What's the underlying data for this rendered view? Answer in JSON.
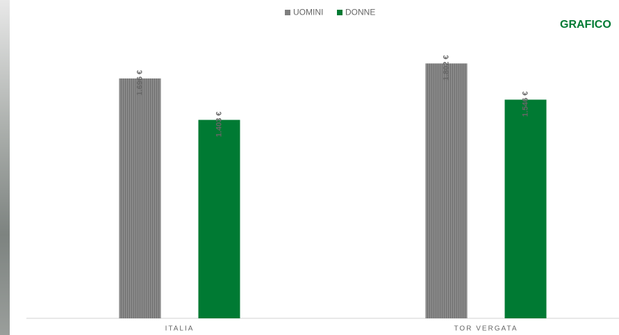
{
  "chart_data": {
    "type": "bar",
    "title": "GRAFICO",
    "categories": [
      "ITALIA",
      "TOR VERGATA"
    ],
    "series": [
      {
        "name": "UOMINI",
        "color": "#7f7f7f",
        "values": [
          1696,
          1802
        ],
        "value_labels": [
          "1.696 €",
          "1.802 €"
        ]
      },
      {
        "name": "DONNE",
        "color": "#007a33",
        "values": [
          1403,
          1546
        ],
        "value_labels": [
          "1.403 €",
          "1.546 €"
        ]
      }
    ],
    "ylim": [
      0,
      2000
    ]
  }
}
